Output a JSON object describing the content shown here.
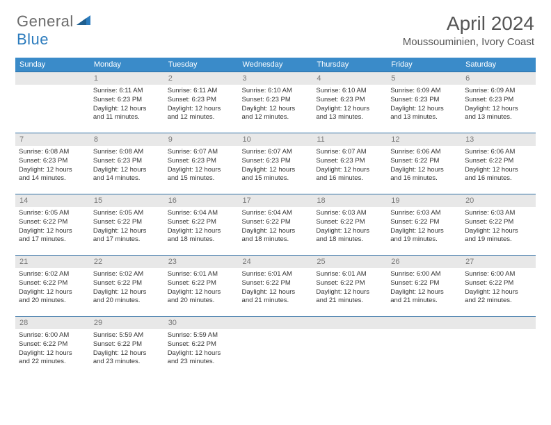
{
  "brand": {
    "part1": "General",
    "part2": "Blue"
  },
  "title": "April 2024",
  "location": "Moussouminien, Ivory Coast",
  "colors": {
    "header_bg": "#3a8bc9",
    "header_text": "#ffffff",
    "daynum_bg": "#e8e8e8",
    "daynum_text": "#787878",
    "row_border": "#2e6ea4",
    "logo_gray": "#6b6b6b",
    "logo_blue": "#2b7bbd"
  },
  "dow": [
    "Sunday",
    "Monday",
    "Tuesday",
    "Wednesday",
    "Thursday",
    "Friday",
    "Saturday"
  ],
  "weeks": [
    [
      null,
      {
        "n": "1",
        "sunrise": "Sunrise: 6:11 AM",
        "sunset": "Sunset: 6:23 PM",
        "day1": "Daylight: 12 hours",
        "day2": "and 11 minutes."
      },
      {
        "n": "2",
        "sunrise": "Sunrise: 6:11 AM",
        "sunset": "Sunset: 6:23 PM",
        "day1": "Daylight: 12 hours",
        "day2": "and 12 minutes."
      },
      {
        "n": "3",
        "sunrise": "Sunrise: 6:10 AM",
        "sunset": "Sunset: 6:23 PM",
        "day1": "Daylight: 12 hours",
        "day2": "and 12 minutes."
      },
      {
        "n": "4",
        "sunrise": "Sunrise: 6:10 AM",
        "sunset": "Sunset: 6:23 PM",
        "day1": "Daylight: 12 hours",
        "day2": "and 13 minutes."
      },
      {
        "n": "5",
        "sunrise": "Sunrise: 6:09 AM",
        "sunset": "Sunset: 6:23 PM",
        "day1": "Daylight: 12 hours",
        "day2": "and 13 minutes."
      },
      {
        "n": "6",
        "sunrise": "Sunrise: 6:09 AM",
        "sunset": "Sunset: 6:23 PM",
        "day1": "Daylight: 12 hours",
        "day2": "and 13 minutes."
      }
    ],
    [
      {
        "n": "7",
        "sunrise": "Sunrise: 6:08 AM",
        "sunset": "Sunset: 6:23 PM",
        "day1": "Daylight: 12 hours",
        "day2": "and 14 minutes."
      },
      {
        "n": "8",
        "sunrise": "Sunrise: 6:08 AM",
        "sunset": "Sunset: 6:23 PM",
        "day1": "Daylight: 12 hours",
        "day2": "and 14 minutes."
      },
      {
        "n": "9",
        "sunrise": "Sunrise: 6:07 AM",
        "sunset": "Sunset: 6:23 PM",
        "day1": "Daylight: 12 hours",
        "day2": "and 15 minutes."
      },
      {
        "n": "10",
        "sunrise": "Sunrise: 6:07 AM",
        "sunset": "Sunset: 6:23 PM",
        "day1": "Daylight: 12 hours",
        "day2": "and 15 minutes."
      },
      {
        "n": "11",
        "sunrise": "Sunrise: 6:07 AM",
        "sunset": "Sunset: 6:23 PM",
        "day1": "Daylight: 12 hours",
        "day2": "and 16 minutes."
      },
      {
        "n": "12",
        "sunrise": "Sunrise: 6:06 AM",
        "sunset": "Sunset: 6:22 PM",
        "day1": "Daylight: 12 hours",
        "day2": "and 16 minutes."
      },
      {
        "n": "13",
        "sunrise": "Sunrise: 6:06 AM",
        "sunset": "Sunset: 6:22 PM",
        "day1": "Daylight: 12 hours",
        "day2": "and 16 minutes."
      }
    ],
    [
      {
        "n": "14",
        "sunrise": "Sunrise: 6:05 AM",
        "sunset": "Sunset: 6:22 PM",
        "day1": "Daylight: 12 hours",
        "day2": "and 17 minutes."
      },
      {
        "n": "15",
        "sunrise": "Sunrise: 6:05 AM",
        "sunset": "Sunset: 6:22 PM",
        "day1": "Daylight: 12 hours",
        "day2": "and 17 minutes."
      },
      {
        "n": "16",
        "sunrise": "Sunrise: 6:04 AM",
        "sunset": "Sunset: 6:22 PM",
        "day1": "Daylight: 12 hours",
        "day2": "and 18 minutes."
      },
      {
        "n": "17",
        "sunrise": "Sunrise: 6:04 AM",
        "sunset": "Sunset: 6:22 PM",
        "day1": "Daylight: 12 hours",
        "day2": "and 18 minutes."
      },
      {
        "n": "18",
        "sunrise": "Sunrise: 6:03 AM",
        "sunset": "Sunset: 6:22 PM",
        "day1": "Daylight: 12 hours",
        "day2": "and 18 minutes."
      },
      {
        "n": "19",
        "sunrise": "Sunrise: 6:03 AM",
        "sunset": "Sunset: 6:22 PM",
        "day1": "Daylight: 12 hours",
        "day2": "and 19 minutes."
      },
      {
        "n": "20",
        "sunrise": "Sunrise: 6:03 AM",
        "sunset": "Sunset: 6:22 PM",
        "day1": "Daylight: 12 hours",
        "day2": "and 19 minutes."
      }
    ],
    [
      {
        "n": "21",
        "sunrise": "Sunrise: 6:02 AM",
        "sunset": "Sunset: 6:22 PM",
        "day1": "Daylight: 12 hours",
        "day2": "and 20 minutes."
      },
      {
        "n": "22",
        "sunrise": "Sunrise: 6:02 AM",
        "sunset": "Sunset: 6:22 PM",
        "day1": "Daylight: 12 hours",
        "day2": "and 20 minutes."
      },
      {
        "n": "23",
        "sunrise": "Sunrise: 6:01 AM",
        "sunset": "Sunset: 6:22 PM",
        "day1": "Daylight: 12 hours",
        "day2": "and 20 minutes."
      },
      {
        "n": "24",
        "sunrise": "Sunrise: 6:01 AM",
        "sunset": "Sunset: 6:22 PM",
        "day1": "Daylight: 12 hours",
        "day2": "and 21 minutes."
      },
      {
        "n": "25",
        "sunrise": "Sunrise: 6:01 AM",
        "sunset": "Sunset: 6:22 PM",
        "day1": "Daylight: 12 hours",
        "day2": "and 21 minutes."
      },
      {
        "n": "26",
        "sunrise": "Sunrise: 6:00 AM",
        "sunset": "Sunset: 6:22 PM",
        "day1": "Daylight: 12 hours",
        "day2": "and 21 minutes."
      },
      {
        "n": "27",
        "sunrise": "Sunrise: 6:00 AM",
        "sunset": "Sunset: 6:22 PM",
        "day1": "Daylight: 12 hours",
        "day2": "and 22 minutes."
      }
    ],
    [
      {
        "n": "28",
        "sunrise": "Sunrise: 6:00 AM",
        "sunset": "Sunset: 6:22 PM",
        "day1": "Daylight: 12 hours",
        "day2": "and 22 minutes."
      },
      {
        "n": "29",
        "sunrise": "Sunrise: 5:59 AM",
        "sunset": "Sunset: 6:22 PM",
        "day1": "Daylight: 12 hours",
        "day2": "and 23 minutes."
      },
      {
        "n": "30",
        "sunrise": "Sunrise: 5:59 AM",
        "sunset": "Sunset: 6:22 PM",
        "day1": "Daylight: 12 hours",
        "day2": "and 23 minutes."
      },
      null,
      null,
      null,
      null
    ]
  ]
}
